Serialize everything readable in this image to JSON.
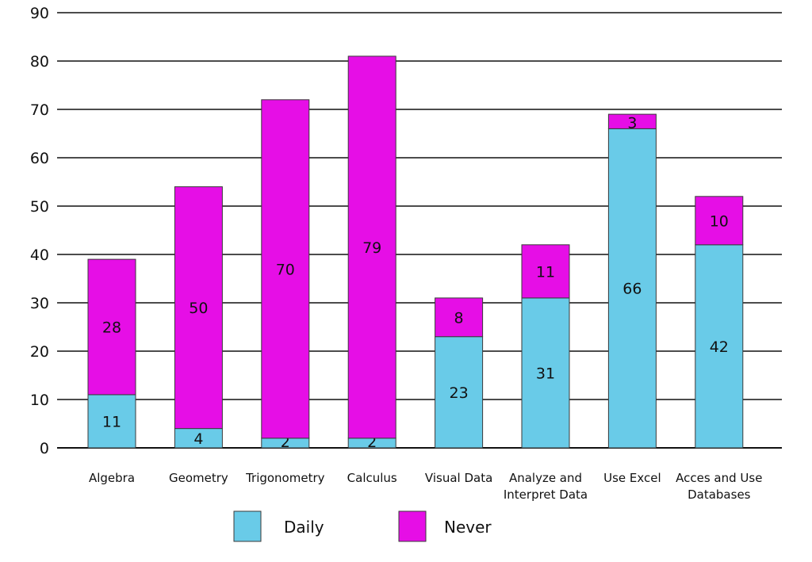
{
  "chart_data": {
    "type": "bar",
    "stacked": true,
    "categories": [
      [
        "Algebra"
      ],
      [
        "Geometry"
      ],
      [
        "Trigonometry"
      ],
      [
        "Calculus"
      ],
      [
        "Visual Data"
      ],
      [
        "Analyze and",
        "Interpret Data"
      ],
      [
        "Use Excel"
      ],
      [
        "Acces and Use",
        "Databases"
      ]
    ],
    "series": [
      {
        "name": "Daily",
        "color": "#69cbe8",
        "values": [
          11,
          4,
          2,
          2,
          23,
          31,
          66,
          42
        ]
      },
      {
        "name": "Never",
        "color": "#e60ee6",
        "values": [
          28,
          50,
          70,
          79,
          8,
          11,
          3,
          10
        ]
      }
    ],
    "ylim": [
      0,
      90
    ],
    "yticks": [
      0,
      10,
      20,
      30,
      40,
      50,
      60,
      70,
      80,
      90
    ],
    "grid": true,
    "legend": "bottom"
  }
}
